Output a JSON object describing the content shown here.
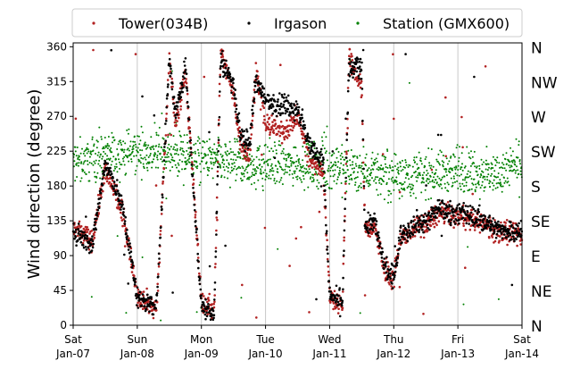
{
  "chart_data": {
    "type": "scatter",
    "title": "",
    "ylabel": "Wind direction (degree)",
    "xlabel": "",
    "ylim": [
      0,
      365
    ],
    "yticks": [
      0,
      45,
      90,
      135,
      180,
      225,
      270,
      315,
      360
    ],
    "compass_labels": [
      {
        "label": "N",
        "value": 0
      },
      {
        "label": "NE",
        "value": 45
      },
      {
        "label": "E",
        "value": 90
      },
      {
        "label": "SE",
        "value": 135
      },
      {
        "label": "S",
        "value": 180
      },
      {
        "label": "SW",
        "value": 225
      },
      {
        "label": "W",
        "value": 270
      },
      {
        "label": "NW",
        "value": 315
      },
      {
        "label": "N",
        "value": 360
      }
    ],
    "x_range_days": [
      0,
      7
    ],
    "xticks": [
      {
        "day": 0,
        "line1": "Sat",
        "line2": "Jan-07"
      },
      {
        "day": 1,
        "line1": "Sun",
        "line2": "Jan-08"
      },
      {
        "day": 2,
        "line1": "Mon",
        "line2": "Jan-09"
      },
      {
        "day": 3,
        "line1": "Tue",
        "line2": "Jan-10"
      },
      {
        "day": 4,
        "line1": "Wed",
        "line2": "Jan-11"
      },
      {
        "day": 5,
        "line1": "Thu",
        "line2": "Jan-12"
      },
      {
        "day": 6,
        "line1": "Fri",
        "line2": "Jan-13"
      },
      {
        "day": 7,
        "line1": "Sat",
        "line2": "Jan-14"
      }
    ],
    "grid": {
      "x": true,
      "y": false
    },
    "legend_position": "top",
    "series": [
      {
        "name": "Tower(034B)",
        "color": "#b22222",
        "trend": [
          [
            0.0,
            125
          ],
          [
            0.3,
            110
          ],
          [
            0.5,
            200
          ],
          [
            0.7,
            160
          ],
          [
            0.8,
            135
          ],
          [
            1.0,
            40
          ],
          [
            1.3,
            20
          ],
          [
            1.5,
            340
          ],
          [
            1.6,
            260
          ],
          [
            1.75,
            330
          ],
          [
            2.0,
            30
          ],
          [
            2.2,
            20
          ],
          [
            2.3,
            355
          ],
          [
            2.5,
            300
          ],
          [
            2.6,
            240
          ],
          [
            2.75,
            215
          ],
          [
            2.85,
            330
          ],
          [
            3.0,
            260
          ],
          [
            3.3,
            250
          ],
          [
            3.5,
            270
          ],
          [
            3.7,
            210
          ],
          [
            3.9,
            200
          ],
          [
            4.0,
            40
          ],
          [
            4.2,
            25
          ],
          [
            4.3,
            345
          ],
          [
            4.5,
            310
          ],
          [
            4.55,
            120
          ],
          [
            4.7,
            130
          ],
          [
            4.85,
            70
          ],
          [
            5.0,
            60
          ],
          [
            5.1,
            110
          ],
          [
            5.3,
            125
          ],
          [
            5.5,
            130
          ],
          [
            5.7,
            145
          ],
          [
            6.0,
            140
          ],
          [
            6.3,
            135
          ],
          [
            6.6,
            120
          ],
          [
            7.0,
            115
          ]
        ]
      },
      {
        "name": "Irgason",
        "color": "#000000",
        "trend": [
          [
            0.0,
            120
          ],
          [
            0.3,
            105
          ],
          [
            0.5,
            210
          ],
          [
            0.7,
            170
          ],
          [
            0.8,
            140
          ],
          [
            1.0,
            35
          ],
          [
            1.3,
            25
          ],
          [
            1.5,
            345
          ],
          [
            1.6,
            270
          ],
          [
            1.75,
            335
          ],
          [
            2.0,
            25
          ],
          [
            2.2,
            15
          ],
          [
            2.3,
            345
          ],
          [
            2.5,
            310
          ],
          [
            2.6,
            250
          ],
          [
            2.75,
            230
          ],
          [
            2.85,
            320
          ],
          [
            3.0,
            290
          ],
          [
            3.3,
            285
          ],
          [
            3.5,
            280
          ],
          [
            3.7,
            230
          ],
          [
            3.9,
            215
          ],
          [
            4.0,
            35
          ],
          [
            4.2,
            30
          ],
          [
            4.3,
            330
          ],
          [
            4.5,
            335
          ],
          [
            4.55,
            125
          ],
          [
            4.7,
            135
          ],
          [
            4.85,
            75
          ],
          [
            5.0,
            60
          ],
          [
            5.1,
            115
          ],
          [
            5.3,
            130
          ],
          [
            5.5,
            135
          ],
          [
            5.7,
            150
          ],
          [
            6.0,
            145
          ],
          [
            6.3,
            140
          ],
          [
            6.6,
            125
          ],
          [
            7.0,
            120
          ]
        ]
      },
      {
        "name": "Station (GMX600)",
        "color": "#008000",
        "trend": [
          [
            0.0,
            210
          ],
          [
            0.5,
            220
          ],
          [
            1.0,
            225
          ],
          [
            1.5,
            220
          ],
          [
            2.0,
            215
          ],
          [
            2.5,
            210
          ],
          [
            3.0,
            205
          ],
          [
            3.5,
            210
          ],
          [
            4.0,
            205
          ],
          [
            4.5,
            200
          ],
          [
            5.0,
            195
          ],
          [
            5.5,
            195
          ],
          [
            6.0,
            200
          ],
          [
            6.5,
            195
          ],
          [
            7.0,
            205
          ]
        ]
      }
    ]
  }
}
